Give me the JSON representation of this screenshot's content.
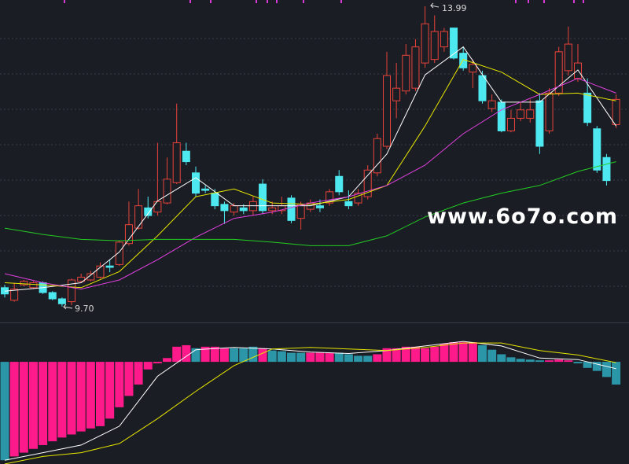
{
  "watermark": "www.6o7o.com",
  "chart_data": [
    {
      "type": "candlestick",
      "up_color": "#e8433a",
      "down_color": "#4de8f0",
      "ylim": [
        9.6,
        14.08
      ],
      "annotations": [
        "13.99",
        "9.70"
      ],
      "candles": [
        [
          9.97,
          10.01,
          9.83,
          9.88
        ],
        [
          9.79,
          10.04,
          9.77,
          9.95
        ],
        [
          10.01,
          10.08,
          9.99,
          10.06
        ],
        [
          9.97,
          10.06,
          9.95,
          10.04
        ],
        [
          10.04,
          10.06,
          9.88,
          9.9
        ],
        [
          9.9,
          9.92,
          9.79,
          9.81
        ],
        [
          9.81,
          9.83,
          9.7,
          9.74
        ],
        [
          9.77,
          10.1,
          9.72,
          10.08
        ],
        [
          10.06,
          10.17,
          10.04,
          10.12
        ],
        [
          10.08,
          10.21,
          10.06,
          10.17
        ],
        [
          10.12,
          10.33,
          10.1,
          10.28
        ],
        [
          10.28,
          10.37,
          10.19,
          10.26
        ],
        [
          10.3,
          10.64,
          10.28,
          10.62
        ],
        [
          10.6,
          11.2,
          10.57,
          10.87
        ],
        [
          10.82,
          11.38,
          10.8,
          11.14
        ],
        [
          11.11,
          11.27,
          10.96,
          11.0
        ],
        [
          11.05,
          12.04,
          11.0,
          11.2
        ],
        [
          11.18,
          11.83,
          11.16,
          11.52
        ],
        [
          11.47,
          12.6,
          11.45,
          12.04
        ],
        [
          11.92,
          12.04,
          11.72,
          11.77
        ],
        [
          11.61,
          11.7,
          11.27,
          11.32
        ],
        [
          11.38,
          11.43,
          11.32,
          11.36
        ],
        [
          11.32,
          11.38,
          11.09,
          11.14
        ],
        [
          11.16,
          11.2,
          10.88,
          11.07
        ],
        [
          11.05,
          11.18,
          11.0,
          11.14
        ],
        [
          11.11,
          11.16,
          11.02,
          11.07
        ],
        [
          11.07,
          11.27,
          11.0,
          11.2
        ],
        [
          11.45,
          11.52,
          11.02,
          11.07
        ],
        [
          11.07,
          11.2,
          11.02,
          11.11
        ],
        [
          11.07,
          11.27,
          11.02,
          11.14
        ],
        [
          11.25,
          11.29,
          10.89,
          10.93
        ],
        [
          10.96,
          11.2,
          10.8,
          11.16
        ],
        [
          11.09,
          11.23,
          11.05,
          11.18
        ],
        [
          11.14,
          11.23,
          11.05,
          11.11
        ],
        [
          11.18,
          11.38,
          11.14,
          11.34
        ],
        [
          11.56,
          11.65,
          11.29,
          11.34
        ],
        [
          11.2,
          11.36,
          11.09,
          11.14
        ],
        [
          11.18,
          11.38,
          11.14,
          11.32
        ],
        [
          11.27,
          11.72,
          11.23,
          11.65
        ],
        [
          11.61,
          12.17,
          11.56,
          12.1
        ],
        [
          11.99,
          13.34,
          11.95,
          13.0
        ],
        [
          12.64,
          13.18,
          12.39,
          12.82
        ],
        [
          12.78,
          13.45,
          12.73,
          13.29
        ],
        [
          12.82,
          13.52,
          12.78,
          13.41
        ],
        [
          13.18,
          13.99,
          13.11,
          13.74
        ],
        [
          13.23,
          13.86,
          13.18,
          13.63
        ],
        [
          13.41,
          13.68,
          13.34,
          13.63
        ],
        [
          13.68,
          13.68,
          13.23,
          13.25
        ],
        [
          13.32,
          13.41,
          13.07,
          13.11
        ],
        [
          13.05,
          13.23,
          12.82,
          13.16
        ],
        [
          13.0,
          13.07,
          12.6,
          12.64
        ],
        [
          12.53,
          12.73,
          12.48,
          12.64
        ],
        [
          12.62,
          12.66,
          12.19,
          12.21
        ],
        [
          12.21,
          12.51,
          12.19,
          12.39
        ],
        [
          12.39,
          12.62,
          12.35,
          12.51
        ],
        [
          12.39,
          12.66,
          12.33,
          12.51
        ],
        [
          12.64,
          12.75,
          11.88,
          11.99
        ],
        [
          12.21,
          12.82,
          12.17,
          12.75
        ],
        [
          12.75,
          13.41,
          12.71,
          13.34
        ],
        [
          13.07,
          13.7,
          13.0,
          13.45
        ],
        [
          12.96,
          13.45,
          12.91,
          13.18
        ],
        [
          12.75,
          12.96,
          12.28,
          12.33
        ],
        [
          12.24,
          12.28,
          11.61,
          11.65
        ],
        [
          11.83,
          11.88,
          11.43,
          11.5
        ],
        [
          12.3,
          12.73,
          12.25,
          12.66
        ]
      ],
      "series": [
        {
          "color": "#ffffff",
          "x": [
            0,
            4,
            8,
            12,
            16,
            20,
            24,
            28,
            32,
            36,
            40,
            44,
            48,
            52,
            56,
            60,
            64
          ],
          "values": [
            9.92,
            9.97,
            10.04,
            10.48,
            11.21,
            11.54,
            11.14,
            11.14,
            11.14,
            11.27,
            11.88,
            13.01,
            13.41,
            12.62,
            12.62,
            13.08,
            12.28
          ]
        },
        {
          "color": "#e6e600",
          "x": [
            0,
            4,
            8,
            12,
            16,
            20,
            24,
            28,
            32,
            36,
            40,
            44,
            48,
            52,
            56,
            60,
            64
          ],
          "values": [
            10.04,
            10.01,
            9.97,
            10.2,
            10.71,
            11.27,
            11.38,
            11.18,
            11.16,
            11.23,
            11.43,
            12.28,
            13.23,
            13.05,
            12.73,
            12.75,
            12.64
          ]
        },
        {
          "color": "#e040e0",
          "x": [
            0,
            4,
            8,
            12,
            16,
            20,
            24,
            28,
            32,
            36,
            40,
            44,
            48,
            52,
            56,
            60,
            64
          ],
          "values": [
            10.17,
            10.04,
            9.95,
            10.08,
            10.37,
            10.69,
            10.96,
            11.05,
            11.18,
            11.27,
            11.43,
            11.72,
            12.17,
            12.51,
            12.73,
            12.96,
            12.75
          ]
        },
        {
          "color": "#22cc22",
          "x": [
            0,
            4,
            8,
            12,
            16,
            20,
            24,
            28,
            32,
            36,
            40,
            44,
            48,
            52,
            56,
            60,
            64
          ],
          "values": [
            10.82,
            10.73,
            10.66,
            10.64,
            10.66,
            10.66,
            10.66,
            10.62,
            10.57,
            10.57,
            10.71,
            10.98,
            11.18,
            11.32,
            11.43,
            11.63,
            11.77
          ]
        }
      ]
    },
    {
      "type": "bar",
      "ylim": [
        -1.35,
        0.5
      ],
      "values": [
        -1.3,
        -1.25,
        -1.2,
        -1.15,
        -1.1,
        -1.05,
        -1.0,
        -0.96,
        -0.92,
        -0.88,
        -0.85,
        -0.75,
        -0.6,
        -0.45,
        -0.3,
        -0.1,
        -0.02,
        0.05,
        0.2,
        0.22,
        0.18,
        0.2,
        0.2,
        0.18,
        0.18,
        0.18,
        0.2,
        0.18,
        0.15,
        0.14,
        0.12,
        0.12,
        0.12,
        0.12,
        0.12,
        0.12,
        0.1,
        0.08,
        0.08,
        0.1,
        0.18,
        0.18,
        0.2,
        0.2,
        0.18,
        0.2,
        0.24,
        0.26,
        0.26,
        0.26,
        0.22,
        0.16,
        0.1,
        0.06,
        0.04,
        0.03,
        0.02,
        0.02,
        0.03,
        0.02,
        -0.02,
        -0.08,
        -0.12,
        -0.2,
        -0.3
      ],
      "colors": [
        "#2b96a8",
        "#ff1a8c",
        "#ff1a8c",
        "#ff1a8c",
        "#ff1a8c",
        "#ff1a8c",
        "#ff1a8c",
        "#ff1a8c",
        "#ff1a8c",
        "#ff1a8c",
        "#ff1a8c",
        "#ff1a8c",
        "#ff1a8c",
        "#ff1a8c",
        "#ff1a8c",
        "#ff1a8c",
        "#ff1a8c",
        "#ff1a8c",
        "#ff1a8c",
        "#ff1a8c",
        "#2b96a8",
        "#ff1a8c",
        "#ff1a8c",
        "#ff1a8c",
        "#2b96a8",
        "#2b96a8",
        "#2b96a8",
        "#ff1a8c",
        "#2b96a8",
        "#2b96a8",
        "#2b96a8",
        "#2b96a8",
        "#ff1a8c",
        "#ff1a8c",
        "#ff1a8c",
        "#2b96a8",
        "#2b96a8",
        "#2b96a8",
        "#2b96a8",
        "#ff1a8c",
        "#ff1a8c",
        "#ff1a8c",
        "#ff1a8c",
        "#ff1a8c",
        "#ff1a8c",
        "#ff1a8c",
        "#ff1a8c",
        "#ff1a8c",
        "#ff1a8c",
        "#ff1a8c",
        "#2b96a8",
        "#2b96a8",
        "#2b96a8",
        "#2b96a8",
        "#2b96a8",
        "#2b96a8",
        "#2b96a8",
        "#ff1a8c",
        "#ff1a8c",
        "#ff1a8c",
        "#2b96a8",
        "#2b96a8",
        "#2b96a8",
        "#2b96a8",
        "#2b96a8"
      ],
      "series": [
        {
          "color": "#ffffff",
          "x": [
            0,
            4,
            8,
            12,
            16,
            20,
            24,
            28,
            32,
            36,
            40,
            44,
            48,
            52,
            56,
            60,
            64
          ],
          "values": [
            -1.3,
            -1.2,
            -1.1,
            -0.85,
            -0.19,
            0.16,
            0.19,
            0.17,
            0.13,
            0.11,
            0.15,
            0.21,
            0.27,
            0.21,
            0.05,
            0.03,
            -0.09
          ]
        },
        {
          "color": "#e6e600",
          "x": [
            0,
            4,
            8,
            12,
            16,
            20,
            24,
            28,
            32,
            36,
            40,
            44,
            48,
            52,
            56,
            60,
            64
          ],
          "values": [
            -1.35,
            -1.25,
            -1.2,
            -1.08,
            -0.75,
            -0.39,
            -0.05,
            0.17,
            0.19,
            0.17,
            0.15,
            0.19,
            0.25,
            0.25,
            0.15,
            0.09,
            -0.01
          ]
        }
      ]
    }
  ]
}
